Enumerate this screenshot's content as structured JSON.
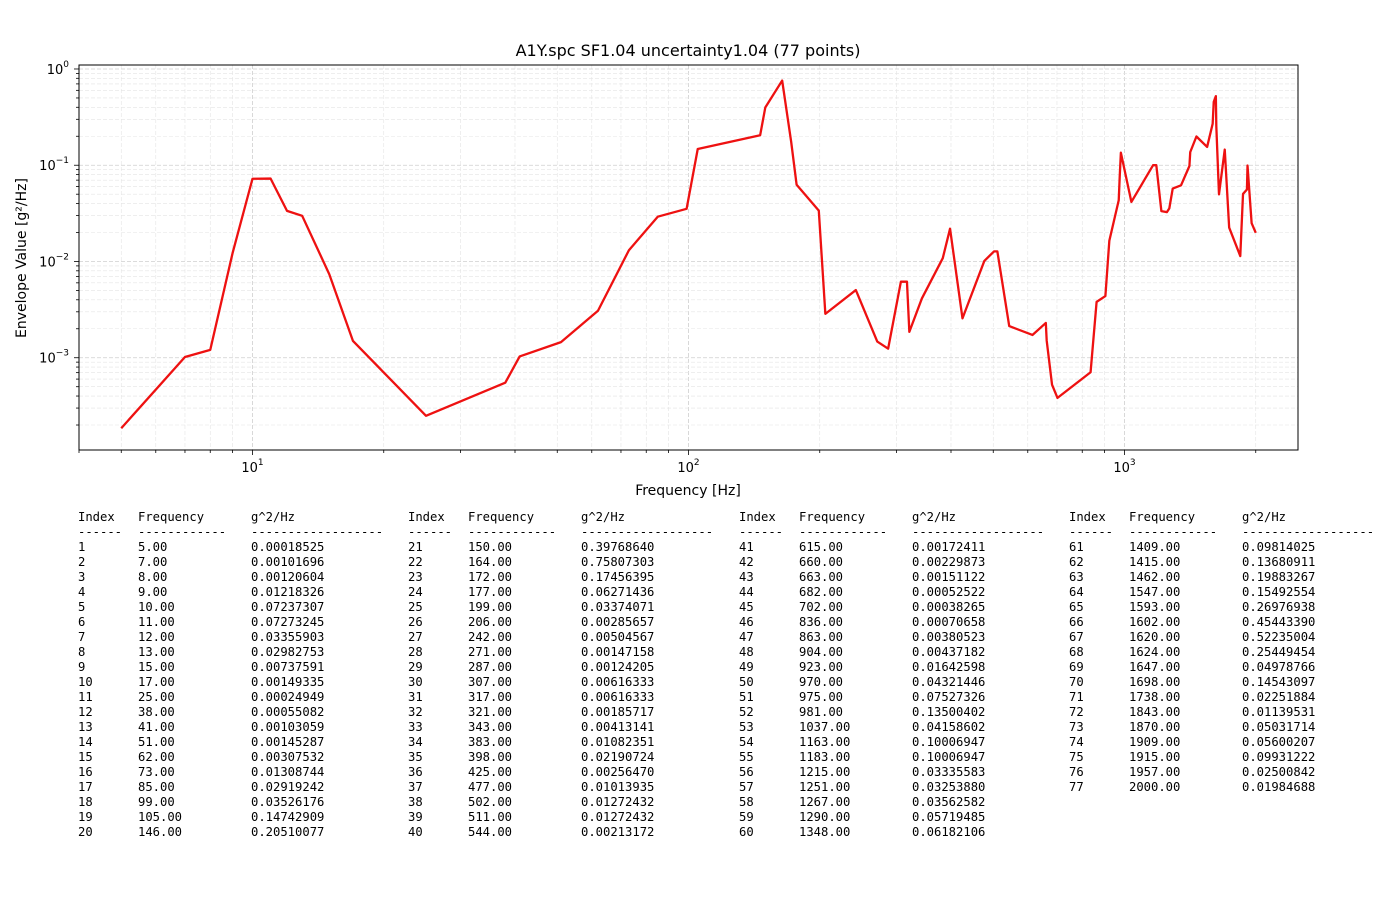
{
  "chart_data": {
    "type": "line",
    "title": "A1Y.spc SF1.04 uncertainty1.04 (77 points)",
    "xlabel": "Frequency [Hz]",
    "ylabel": "Envelope Value [g²/Hz]",
    "xscale": "log",
    "yscale": "log",
    "xlim": [
      4.0,
      2500
    ],
    "ylim": [
      0.00011,
      1.1
    ],
    "grid": true,
    "line_color": "#ee1111",
    "x_ticks": [
      "10",
      "10",
      "10"
    ],
    "x_tick_exps": [
      "1",
      "2",
      "3"
    ],
    "y_ticks": [
      "10",
      "10",
      "10",
      "10"
    ],
    "y_tick_exps": [
      "0",
      "−1",
      "−2",
      "−3"
    ],
    "x": [
      5,
      7,
      8,
      9,
      10,
      11,
      12,
      13,
      15,
      17,
      25,
      38,
      41,
      51,
      62,
      73,
      85,
      99,
      105,
      146,
      150,
      164,
      172,
      177,
      199,
      206,
      242,
      271,
      287,
      307,
      317,
      321,
      343,
      383,
      398,
      425,
      477,
      502,
      511,
      544,
      615,
      660,
      663,
      682,
      702,
      836,
      863,
      904,
      923,
      970,
      975,
      981,
      1037,
      1163,
      1183,
      1215,
      1251,
      1267,
      1290,
      1348,
      1409,
      1415,
      1462,
      1547,
      1593,
      1602,
      1620,
      1624,
      1647,
      1698,
      1738,
      1843,
      1870,
      1909,
      1915,
      1957,
      2000
    ],
    "y": [
      0.00018525,
      0.00101696,
      0.00120604,
      0.01218326,
      0.07237307,
      0.07273245,
      0.03355903,
      0.02982753,
      0.00737591,
      0.00149335,
      0.00024949,
      0.00055082,
      0.00103059,
      0.00145287,
      0.00307532,
      0.01308744,
      0.02919242,
      0.03526176,
      0.14742909,
      0.20510077,
      0.3976864,
      0.75807303,
      0.17456395,
      0.06271436,
      0.03374071,
      0.00285657,
      0.00504567,
      0.00147158,
      0.00124205,
      0.00616333,
      0.00616333,
      0.00185717,
      0.00413141,
      0.01082351,
      0.02190724,
      0.0025647,
      0.01013935,
      0.01272432,
      0.01272432,
      0.00213172,
      0.00172411,
      0.00229873,
      0.00151122,
      0.00052522,
      0.00038265,
      0.00070658,
      0.00380523,
      0.00437182,
      0.01642598,
      0.04321446,
      0.07527326,
      0.13500402,
      0.04158602,
      0.10006947,
      0.10006947,
      0.03335583,
      0.0325388,
      0.03562582,
      0.05719485,
      0.06182106,
      0.09814025,
      0.13680911,
      0.19883267,
      0.15492554,
      0.26976938,
      0.4544339,
      0.52235004,
      0.25449454,
      0.04978766,
      0.14543097,
      0.02251884,
      0.01139531,
      0.05031714,
      0.05600207,
      0.09931222,
      0.02500842,
      0.01984688
    ]
  },
  "table": {
    "headers": [
      "Index",
      "Frequency",
      "g^2/Hz"
    ],
    "separators": [
      "------",
      "------------",
      "------------------"
    ],
    "columns": [
      [
        [
          "1",
          "5.00",
          "0.00018525"
        ],
        [
          "2",
          "7.00",
          "0.00101696"
        ],
        [
          "3",
          "8.00",
          "0.00120604"
        ],
        [
          "4",
          "9.00",
          "0.01218326"
        ],
        [
          "5",
          "10.00",
          "0.07237307"
        ],
        [
          "6",
          "11.00",
          "0.07273245"
        ],
        [
          "7",
          "12.00",
          "0.03355903"
        ],
        [
          "8",
          "13.00",
          "0.02982753"
        ],
        [
          "9",
          "15.00",
          "0.00737591"
        ],
        [
          "10",
          "17.00",
          "0.00149335"
        ],
        [
          "11",
          "25.00",
          "0.00024949"
        ],
        [
          "12",
          "38.00",
          "0.00055082"
        ],
        [
          "13",
          "41.00",
          "0.00103059"
        ],
        [
          "14",
          "51.00",
          "0.00145287"
        ],
        [
          "15",
          "62.00",
          "0.00307532"
        ],
        [
          "16",
          "73.00",
          "0.01308744"
        ],
        [
          "17",
          "85.00",
          "0.02919242"
        ],
        [
          "18",
          "99.00",
          "0.03526176"
        ],
        [
          "19",
          "105.00",
          "0.14742909"
        ],
        [
          "20",
          "146.00",
          "0.20510077"
        ]
      ],
      [
        [
          "21",
          "150.00",
          "0.39768640"
        ],
        [
          "22",
          "164.00",
          "0.75807303"
        ],
        [
          "23",
          "172.00",
          "0.17456395"
        ],
        [
          "24",
          "177.00",
          "0.06271436"
        ],
        [
          "25",
          "199.00",
          "0.03374071"
        ],
        [
          "26",
          "206.00",
          "0.00285657"
        ],
        [
          "27",
          "242.00",
          "0.00504567"
        ],
        [
          "28",
          "271.00",
          "0.00147158"
        ],
        [
          "29",
          "287.00",
          "0.00124205"
        ],
        [
          "30",
          "307.00",
          "0.00616333"
        ],
        [
          "31",
          "317.00",
          "0.00616333"
        ],
        [
          "32",
          "321.00",
          "0.00185717"
        ],
        [
          "33",
          "343.00",
          "0.00413141"
        ],
        [
          "34",
          "383.00",
          "0.01082351"
        ],
        [
          "35",
          "398.00",
          "0.02190724"
        ],
        [
          "36",
          "425.00",
          "0.00256470"
        ],
        [
          "37",
          "477.00",
          "0.01013935"
        ],
        [
          "38",
          "502.00",
          "0.01272432"
        ],
        [
          "39",
          "511.00",
          "0.01272432"
        ],
        [
          "40",
          "544.00",
          "0.00213172"
        ]
      ],
      [
        [
          "41",
          "615.00",
          "0.00172411"
        ],
        [
          "42",
          "660.00",
          "0.00229873"
        ],
        [
          "43",
          "663.00",
          "0.00151122"
        ],
        [
          "44",
          "682.00",
          "0.00052522"
        ],
        [
          "45",
          "702.00",
          "0.00038265"
        ],
        [
          "46",
          "836.00",
          "0.00070658"
        ],
        [
          "47",
          "863.00",
          "0.00380523"
        ],
        [
          "48",
          "904.00",
          "0.00437182"
        ],
        [
          "49",
          "923.00",
          "0.01642598"
        ],
        [
          "50",
          "970.00",
          "0.04321446"
        ],
        [
          "51",
          "975.00",
          "0.07527326"
        ],
        [
          "52",
          "981.00",
          "0.13500402"
        ],
        [
          "53",
          "1037.00",
          "0.04158602"
        ],
        [
          "54",
          "1163.00",
          "0.10006947"
        ],
        [
          "55",
          "1183.00",
          "0.10006947"
        ],
        [
          "56",
          "1215.00",
          "0.03335583"
        ],
        [
          "57",
          "1251.00",
          "0.03253880"
        ],
        [
          "58",
          "1267.00",
          "0.03562582"
        ],
        [
          "59",
          "1290.00",
          "0.05719485"
        ],
        [
          "60",
          "1348.00",
          "0.06182106"
        ]
      ],
      [
        [
          "61",
          "1409.00",
          "0.09814025"
        ],
        [
          "62",
          "1415.00",
          "0.13680911"
        ],
        [
          "63",
          "1462.00",
          "0.19883267"
        ],
        [
          "64",
          "1547.00",
          "0.15492554"
        ],
        [
          "65",
          "1593.00",
          "0.26976938"
        ],
        [
          "66",
          "1602.00",
          "0.45443390"
        ],
        [
          "67",
          "1620.00",
          "0.52235004"
        ],
        [
          "68",
          "1624.00",
          "0.25449454"
        ],
        [
          "69",
          "1647.00",
          "0.04978766"
        ],
        [
          "70",
          "1698.00",
          "0.14543097"
        ],
        [
          "71",
          "1738.00",
          "0.02251884"
        ],
        [
          "72",
          "1843.00",
          "0.01139531"
        ],
        [
          "73",
          "1870.00",
          "0.05031714"
        ],
        [
          "74",
          "1909.00",
          "0.05600207"
        ],
        [
          "75",
          "1915.00",
          "0.09931222"
        ],
        [
          "76",
          "1957.00",
          "0.02500842"
        ],
        [
          "77",
          "2000.00",
          "0.01984688"
        ]
      ]
    ]
  }
}
